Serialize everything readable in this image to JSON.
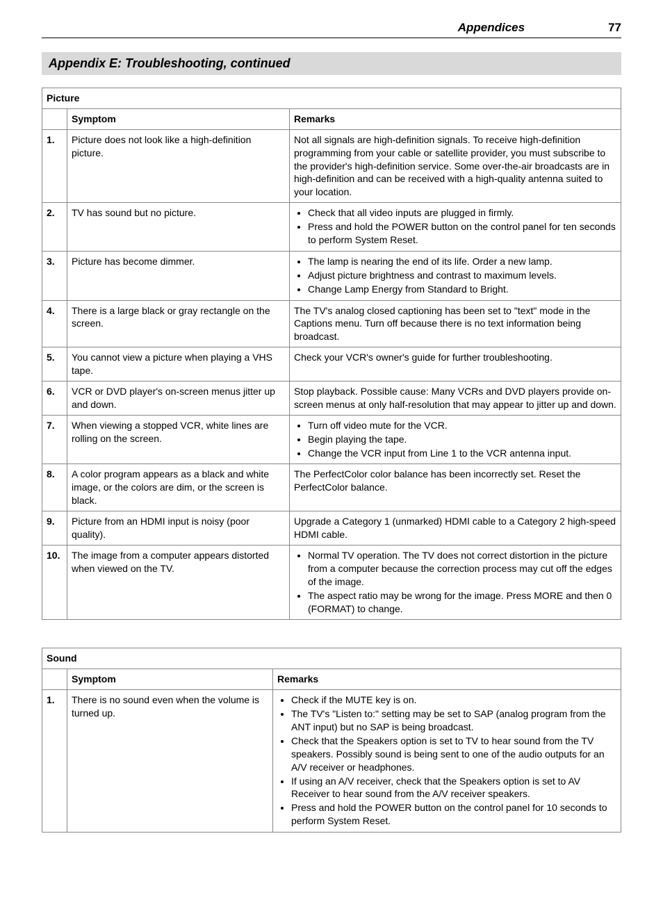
{
  "header": {
    "section": "Appendices",
    "page_number": "77"
  },
  "title": "Appendix E:  Troubleshooting, continued",
  "tables": {
    "picture": {
      "category": "Picture",
      "col_symptom": "Symptom",
      "col_remarks": "Remarks",
      "rows": [
        {
          "num": "1.",
          "symptom": "Picture does not look like a high-definition picture.",
          "remarks_text": "Not all signals are high-definition signals.  To receive high-definition programming from your cable or satellite provider, you must subscribe to the provider's high-definition service.   Some over-the-air broadcasts are in high-definition and can be received with a high-quality antenna suited to your location."
        },
        {
          "num": "2.",
          "symptom": "TV has sound but no picture.",
          "remarks_list": [
            "Check that all video inputs are plugged in firmly.",
            "Press and hold the POWER button on the control panel for ten seconds to perform System Reset."
          ]
        },
        {
          "num": "3.",
          "symptom": "Picture has become dimmer.",
          "remarks_list": [
            "The lamp is nearing the end of its life.  Order a new lamp.",
            "Adjust picture brightness and contrast to maximum levels.",
            "Change Lamp Energy from Standard to Bright."
          ]
        },
        {
          "num": "4.",
          "symptom": "There is a large black or gray rectangle on the screen.",
          "remarks_text": "The TV's analog closed captioning has been set to \"text\" mode in the Captions menu.  Turn off because there is no text information being broadcast."
        },
        {
          "num": "5.",
          "symptom": "You cannot view a picture when playing a VHS tape.",
          "remarks_text": "Check your VCR's owner's guide for further troubleshooting."
        },
        {
          "num": "6.",
          "symptom": "VCR or DVD player's on-screen menus jitter up and down.",
          "remarks_text": "Stop playback.  Possible cause:  Many VCRs and DVD players provide on-screen menus at only half-resolution that may appear to jitter up and down."
        },
        {
          "num": "7.",
          "symptom": "When viewing a stopped VCR, white lines are rolling on the screen.",
          "remarks_list": [
            "Turn off video mute for the VCR.",
            "Begin playing the tape.",
            "Change the VCR input from Line 1 to the VCR antenna input."
          ]
        },
        {
          "num": "8.",
          "symptom": "A color program appears as a black and white image, or the colors are dim, or the screen is black.",
          "remarks_text": "The PerfectColor color balance has been incorrectly set.  Reset the PerfectColor balance."
        },
        {
          "num": "9.",
          "symptom": "Picture from an HDMI input is noisy (poor quality).",
          "remarks_text": "Upgrade a Category 1 (unmarked) HDMI cable to a Category 2 high-speed HDMI cable."
        },
        {
          "num": "10.",
          "symptom": "The image from a computer appears distorted when viewed on the TV.",
          "remarks_list": [
            "Normal TV operation.  The TV does not correct distortion in the picture from a computer because the correction process may cut off the edges of the image.",
            "The aspect ratio may be wrong for the image.  Press MORE and then 0 (FORMAT) to change."
          ]
        }
      ]
    },
    "sound": {
      "category": "Sound",
      "col_symptom": "Symptom",
      "col_remarks": "Remarks",
      "rows": [
        {
          "num": "1.",
          "symptom": "There is no sound even when the volume is turned up.",
          "remarks_list": [
            "Check if the MUTE key is on.",
            "The TV's \"Listen to:\" setting may be set to SAP (analog program from the ANT input) but no SAP is being broadcast.",
            "Check that the Speakers option is set to TV to hear sound from the TV speakers.  Possibly sound is being sent to one of the audio outputs for an A/V receiver or headphones.",
            "If using an A/V receiver, check that the Speakers option is set to AV Receiver to hear sound from the A/V receiver speakers.",
            "Press and hold the POWER button on the control panel for 10 seconds to perform System Reset."
          ]
        }
      ]
    }
  },
  "colors": {
    "title_bar_bg": "#d9d9d9",
    "border": "#878787",
    "text": "#000000",
    "background": "#ffffff"
  }
}
